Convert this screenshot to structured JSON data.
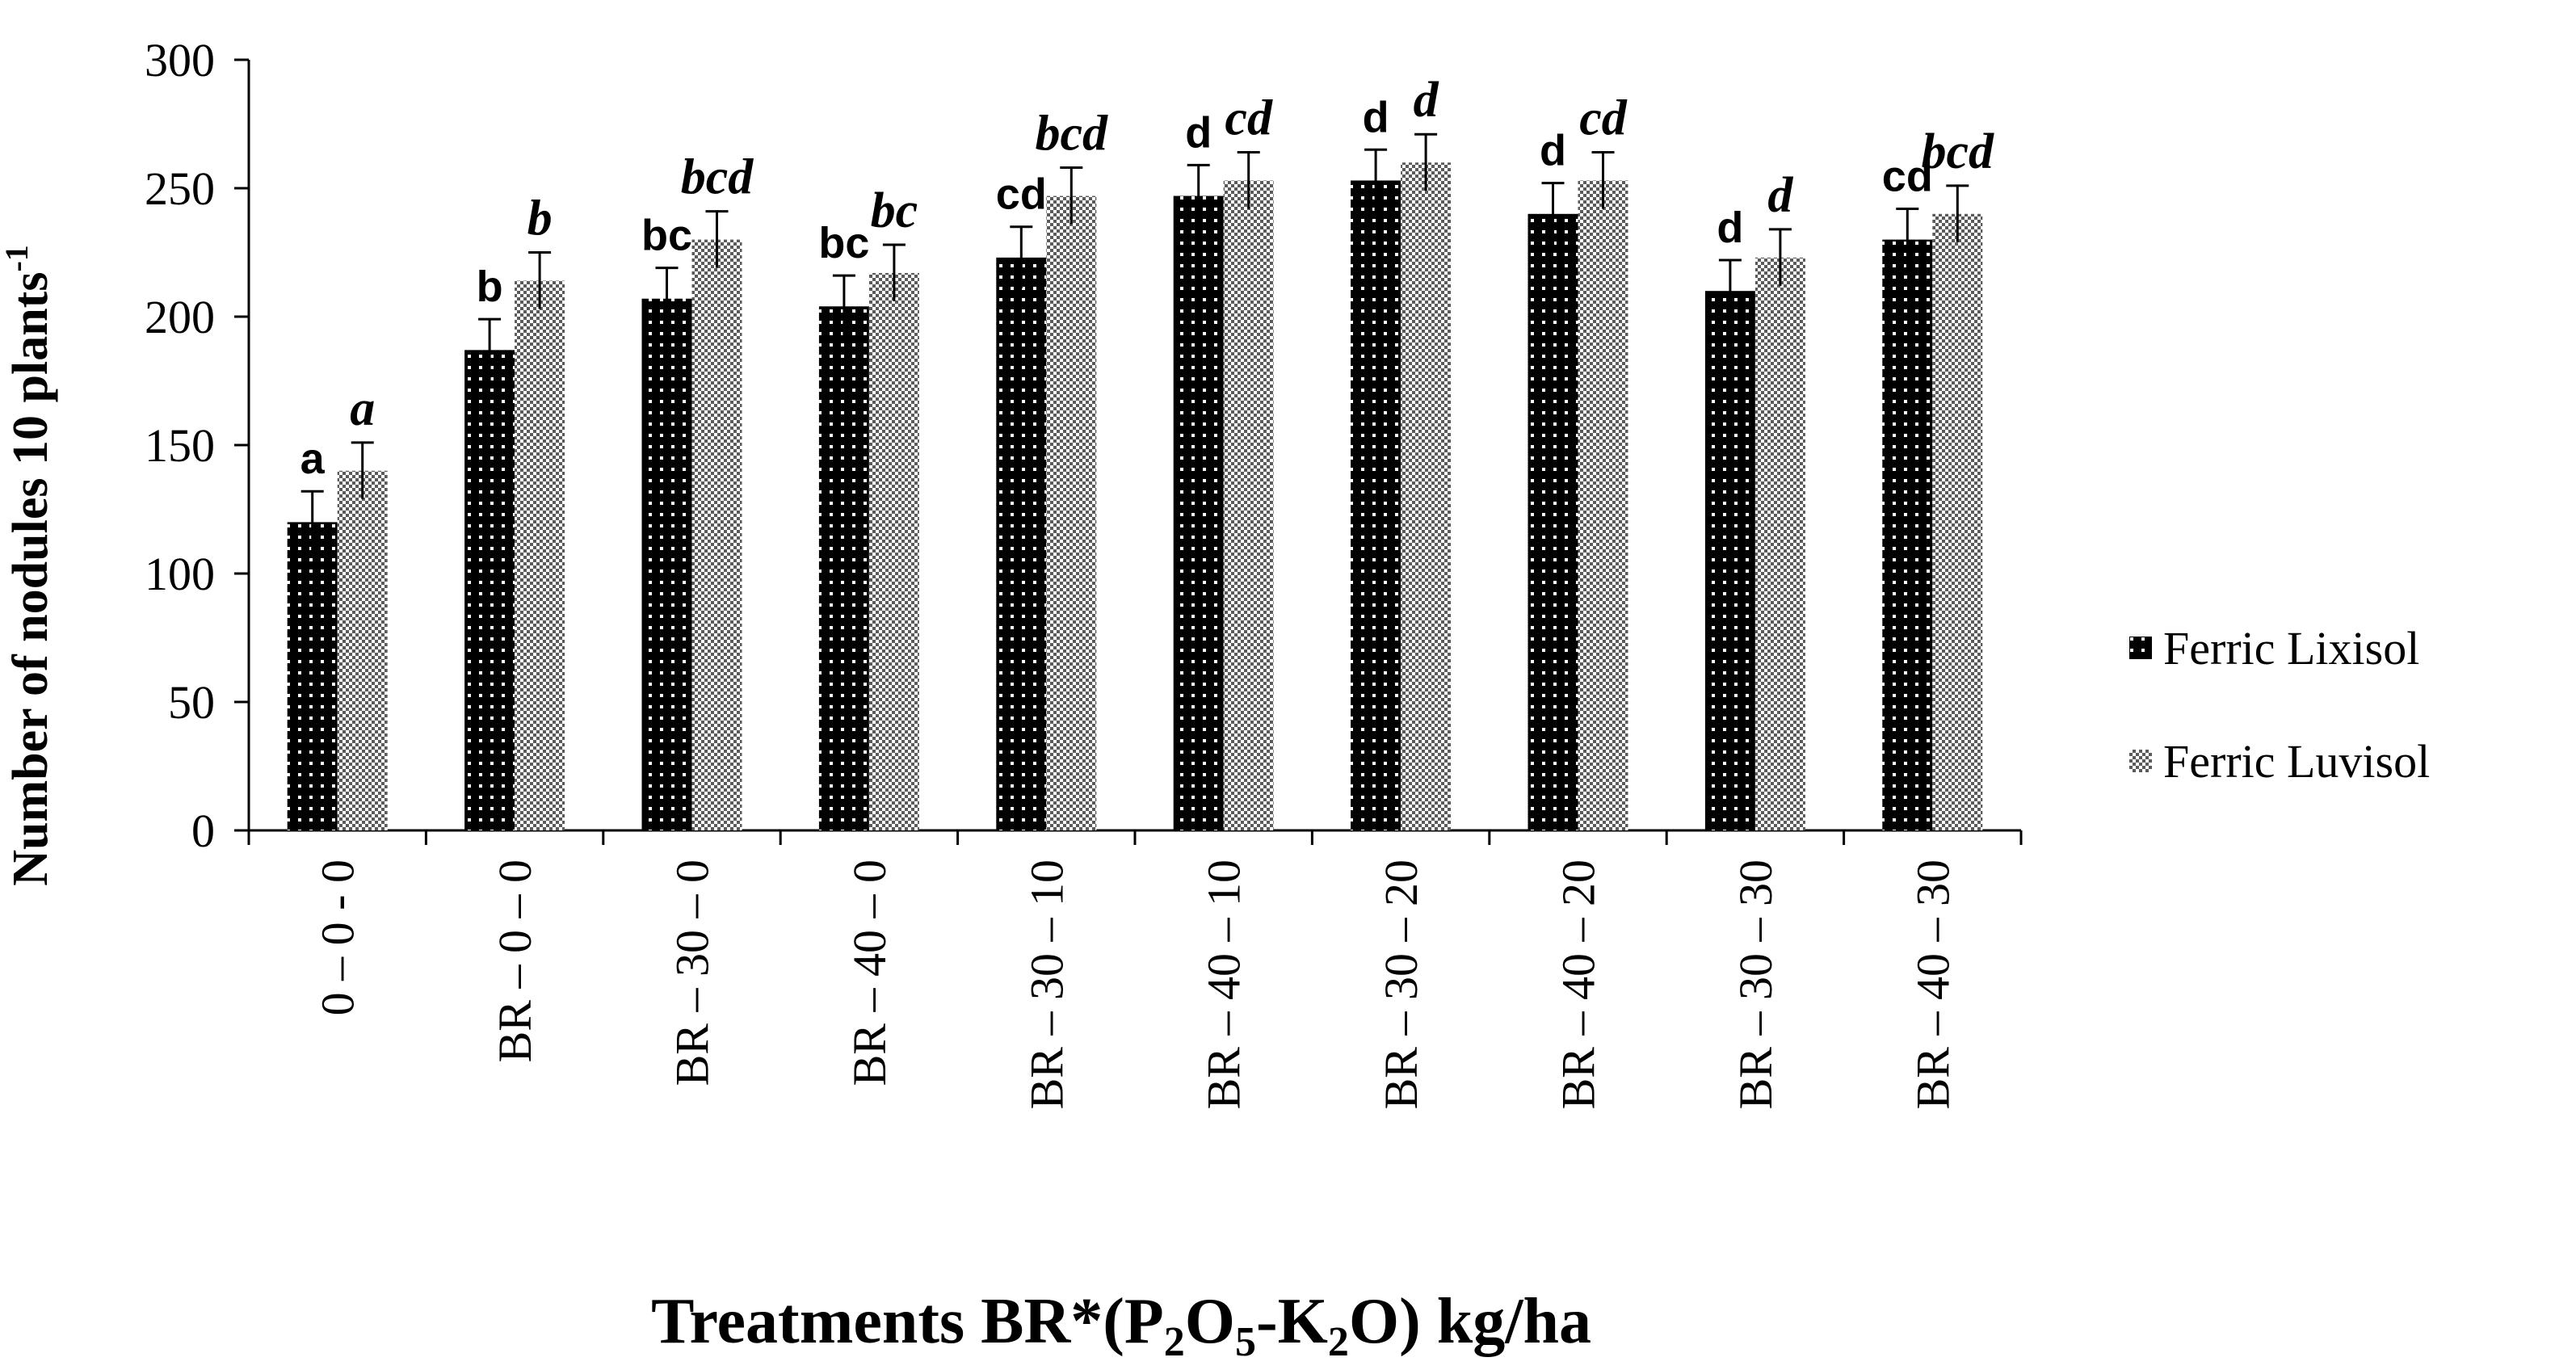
{
  "chart_data": {
    "type": "bar",
    "ylabel": "Number of nodules 10 plants",
    "ylabel_sup": "-1",
    "xlabel_parts": [
      "Treatments BR*(P",
      "2",
      "O",
      "5",
      "-K",
      "2",
      "O) kg/ha"
    ],
    "ylim": [
      0,
      300
    ],
    "yticks": [
      "0",
      "50",
      "100",
      "150",
      "200",
      "250",
      "300"
    ],
    "categories": [
      "0 – 0 - 0",
      "BR – 0 – 0",
      "BR – 30 – 0",
      "BR – 40 – 0",
      "BR – 30 – 10",
      "BR – 40 – 10",
      "BR – 30 – 20",
      "BR – 40 – 20",
      "BR – 30 – 30",
      "BR – 40 – 30"
    ],
    "series": [
      {
        "name": "Ferric Lixisol",
        "color": "#000000",
        "values": [
          120,
          187,
          207,
          204,
          223,
          247,
          253,
          240,
          210,
          230
        ],
        "errors": [
          12,
          12,
          12,
          12,
          12,
          12,
          12,
          12,
          12,
          12
        ],
        "significance": [
          "a",
          "b",
          "bc",
          "bc",
          "cd",
          "d",
          "d",
          "d",
          "d",
          "cd"
        ]
      },
      {
        "name": "Ferric Luvisol",
        "color": "#8a8a8a",
        "values": [
          140,
          214,
          230,
          217,
          247,
          253,
          260,
          253,
          223,
          240
        ],
        "errors": [
          11,
          11,
          11,
          11,
          11,
          11,
          11,
          11,
          11,
          11
        ],
        "significance": [
          "a",
          "b",
          "bcd",
          "bc",
          "bcd",
          "cd",
          "d",
          "cd",
          "d",
          "bcd"
        ]
      }
    ],
    "legend_position": "right"
  }
}
